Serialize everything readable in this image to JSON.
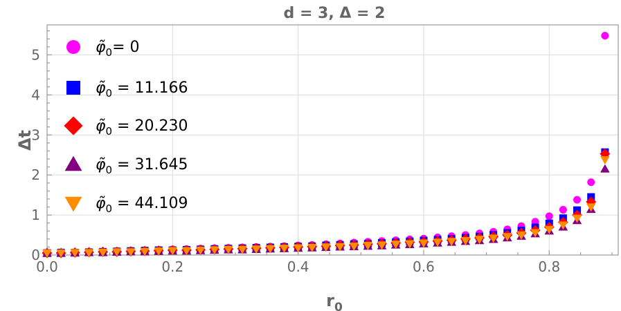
{
  "chart_data": {
    "type": "scatter",
    "title": "d = 3, Δ = 2",
    "xlabel": "r",
    "xlabel_sub": "0",
    "ylabel": "Δt",
    "xlim": [
      0,
      0.91
    ],
    "ylim": [
      0,
      5.75
    ],
    "x_ticks": [
      {
        "value": 0.0,
        "label": "0.0"
      },
      {
        "value": 0.2,
        "label": "0.2"
      },
      {
        "value": 0.4,
        "label": "0.4"
      },
      {
        "value": 0.6,
        "label": "0.6"
      },
      {
        "value": 0.8,
        "label": "0.8"
      }
    ],
    "y_ticks": [
      {
        "value": 0,
        "label": "0"
      },
      {
        "value": 1,
        "label": "1"
      },
      {
        "value": 2,
        "label": "2"
      },
      {
        "value": 3,
        "label": "3"
      },
      {
        "value": 4,
        "label": "4"
      },
      {
        "value": 5,
        "label": "5"
      }
    ],
    "grid": true,
    "legend_position": "top-left",
    "x": [
      0.0,
      0.0222,
      0.0444,
      0.0667,
      0.0889,
      0.1111,
      0.1333,
      0.1556,
      0.1778,
      0.2,
      0.2222,
      0.2444,
      0.2667,
      0.2889,
      0.3111,
      0.3333,
      0.3556,
      0.3778,
      0.4,
      0.4222,
      0.4444,
      0.4667,
      0.4889,
      0.5111,
      0.5333,
      0.5556,
      0.5778,
      0.6,
      0.6222,
      0.6444,
      0.6667,
      0.6889,
      0.7111,
      0.7333,
      0.7556,
      0.7778,
      0.8,
      0.8222,
      0.8444,
      0.8667,
      0.8889
    ],
    "series": [
      {
        "name_base": "φ̃",
        "name_sub": "0",
        "name_value": "= 0",
        "marker": "circle",
        "color": "#ff00ff",
        "values": [
          0.05,
          0.06,
          0.07,
          0.08,
          0.09,
          0.1,
          0.11,
          0.12,
          0.13,
          0.14,
          0.15,
          0.16,
          0.17,
          0.18,
          0.19,
          0.2,
          0.21,
          0.22,
          0.24,
          0.25,
          0.27,
          0.29,
          0.31,
          0.33,
          0.35,
          0.37,
          0.39,
          0.41,
          0.44,
          0.47,
          0.5,
          0.54,
          0.58,
          0.64,
          0.72,
          0.83,
          0.97,
          1.13,
          1.38,
          1.82,
          5.48
        ]
      },
      {
        "name_base": "φ̃",
        "name_sub": "0",
        "name_value": " = 11.166",
        "marker": "square",
        "color": "#0000ff",
        "values": [
          0.05,
          0.06,
          0.06,
          0.07,
          0.08,
          0.09,
          0.1,
          0.11,
          0.12,
          0.12,
          0.13,
          0.14,
          0.15,
          0.16,
          0.17,
          0.18,
          0.19,
          0.2,
          0.21,
          0.22,
          0.24,
          0.25,
          0.27,
          0.28,
          0.3,
          0.32,
          0.34,
          0.36,
          0.38,
          0.4,
          0.43,
          0.46,
          0.5,
          0.55,
          0.61,
          0.69,
          0.79,
          0.92,
          1.12,
          1.45,
          2.57
        ]
      },
      {
        "name_base": "φ̃",
        "name_sub": "0",
        "name_value": " = 20.230",
        "marker": "diamond",
        "color": "#ff0000",
        "values": [
          0.05,
          0.05,
          0.06,
          0.07,
          0.08,
          0.08,
          0.09,
          0.1,
          0.11,
          0.12,
          0.12,
          0.13,
          0.14,
          0.15,
          0.16,
          0.17,
          0.18,
          0.19,
          0.2,
          0.21,
          0.22,
          0.24,
          0.25,
          0.27,
          0.28,
          0.3,
          0.32,
          0.33,
          0.35,
          0.37,
          0.4,
          0.43,
          0.46,
          0.5,
          0.55,
          0.62,
          0.7,
          0.82,
          1.0,
          1.33,
          2.53
        ]
      },
      {
        "name_base": "φ̃",
        "name_sub": "0",
        "name_value": " = 31.645",
        "marker": "triangle-up",
        "color": "#800080",
        "values": [
          0.04,
          0.04,
          0.05,
          0.06,
          0.06,
          0.07,
          0.08,
          0.08,
          0.09,
          0.1,
          0.1,
          0.11,
          0.12,
          0.13,
          0.13,
          0.14,
          0.15,
          0.16,
          0.17,
          0.18,
          0.19,
          0.2,
          0.21,
          0.22,
          0.23,
          0.25,
          0.26,
          0.28,
          0.3,
          0.32,
          0.34,
          0.36,
          0.39,
          0.43,
          0.47,
          0.53,
          0.6,
          0.7,
          0.86,
          1.14,
          2.15
        ]
      },
      {
        "name_base": "φ̃",
        "name_sub": "0",
        "name_value": " = 44.109",
        "marker": "triangle-down",
        "color": "#ff8c00",
        "values": [
          0.05,
          0.05,
          0.06,
          0.06,
          0.07,
          0.08,
          0.08,
          0.09,
          0.1,
          0.11,
          0.11,
          0.12,
          0.13,
          0.14,
          0.14,
          0.15,
          0.16,
          0.17,
          0.18,
          0.19,
          0.2,
          0.21,
          0.22,
          0.24,
          0.25,
          0.27,
          0.28,
          0.3,
          0.32,
          0.34,
          0.36,
          0.39,
          0.42,
          0.46,
          0.5,
          0.56,
          0.64,
          0.75,
          0.92,
          1.2,
          2.38
        ]
      }
    ]
  }
}
